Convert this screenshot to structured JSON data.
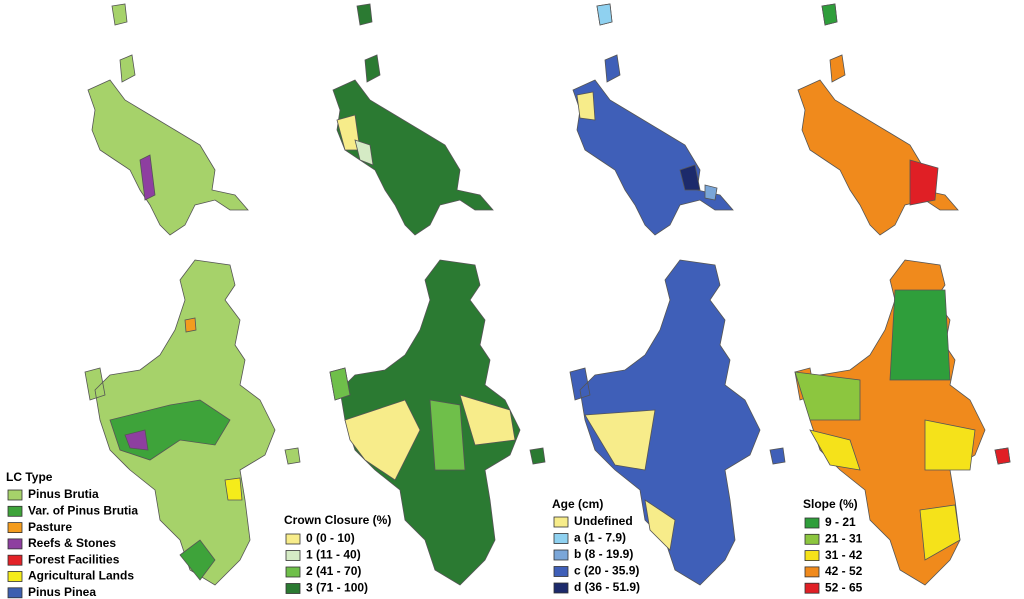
{
  "legends": [
    {
      "title": "LC Type",
      "items": [
        {
          "label": "Pinus Brutia",
          "color": "#a6d26a"
        },
        {
          "label": "Var. of Pinus Brutia",
          "color": "#3ea33a"
        },
        {
          "label": "Pasture",
          "color": "#f39c1e"
        },
        {
          "label": "Reefs & Stones",
          "color": "#8e3fa0"
        },
        {
          "label": "Forest Facilities",
          "color": "#e32227"
        },
        {
          "label": "Agricultural Lands",
          "color": "#f5ec1a"
        },
        {
          "label": "Pinus Pinea",
          "color": "#3d5fb0"
        }
      ]
    },
    {
      "title": "Crown Closure (%)",
      "items": [
        {
          "label": "0 (0 - 10)",
          "color": "#f7ec8a"
        },
        {
          "label": "1 (11 - 40)",
          "color": "#d5ebc5"
        },
        {
          "label": "2 (41 - 70)",
          "color": "#6fbf4a"
        },
        {
          "label": "3 (71 - 100)",
          "color": "#2b7a32"
        }
      ]
    },
    {
      "title": "Age (cm)",
      "items": [
        {
          "label": "Undefined",
          "color": "#f7ec8a"
        },
        {
          "label": "a (1 - 7.9)",
          "color": "#8fd1f0"
        },
        {
          "label": "b (8 - 19.9)",
          "color": "#7aa6d8"
        },
        {
          "label": "c (20 - 35.9)",
          "color": "#3f5fb8"
        },
        {
          "label": "d (36 - 51.9)",
          "color": "#1c2a6b"
        }
      ]
    },
    {
      "title": "Slope (%)",
      "items": [
        {
          "label": "9 - 21",
          "color": "#2f9e3b"
        },
        {
          "label": "21 - 31",
          "color": "#8cc63f"
        },
        {
          "label": "31 - 42",
          "color": "#f5e21a"
        },
        {
          "label": "42 - 52",
          "color": "#f08a1c"
        },
        {
          "label": "52 - 65",
          "color": "#e01f25"
        }
      ]
    }
  ]
}
